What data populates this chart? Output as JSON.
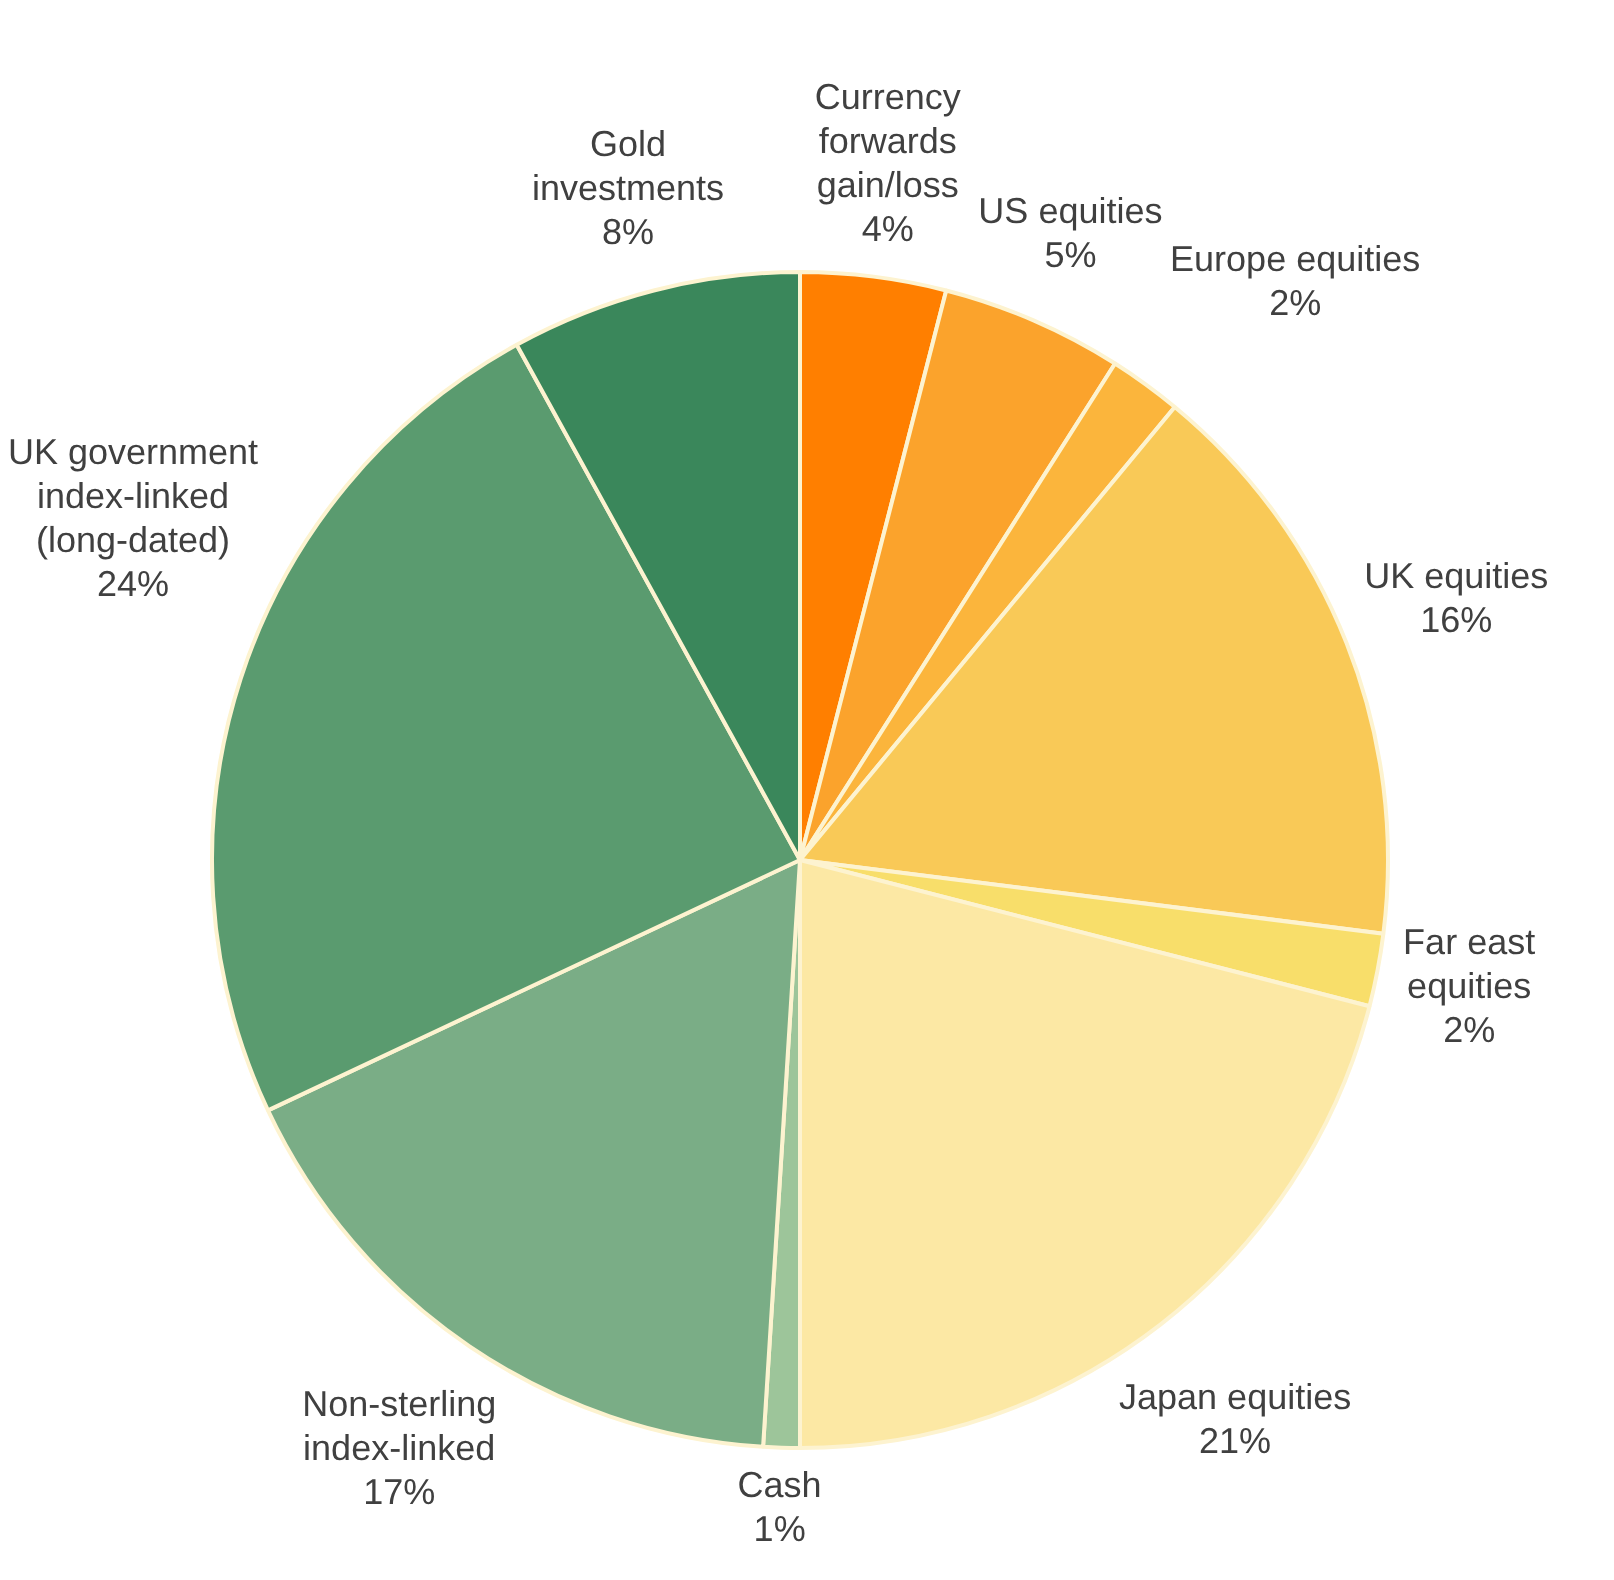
{
  "chart_data": {
    "type": "pie",
    "categories": [
      "Currency forwards gain/loss",
      "US equities",
      "Europe equities",
      "UK equities",
      "Far east equities",
      "Japan equities",
      "Cash",
      "Non-sterling index-linked",
      "UK government index-linked (long-dated)",
      "Gold investments"
    ],
    "values": [
      4,
      5,
      2,
      16,
      2,
      21,
      1,
      17,
      24,
      8
    ],
    "value_labels": [
      "4%",
      "5%",
      "2%",
      "16%",
      "2%",
      "21%",
      "1%",
      "17%",
      "24%",
      "8%"
    ],
    "colors": [
      "#ff7f00",
      "#fba32c",
      "#fbb53c",
      "#f9c957",
      "#f8de6a",
      "#fce8a4",
      "#9dc59a",
      "#7aad86",
      "#5a9b6f",
      "#3a875b"
    ],
    "legend": false
  }
}
